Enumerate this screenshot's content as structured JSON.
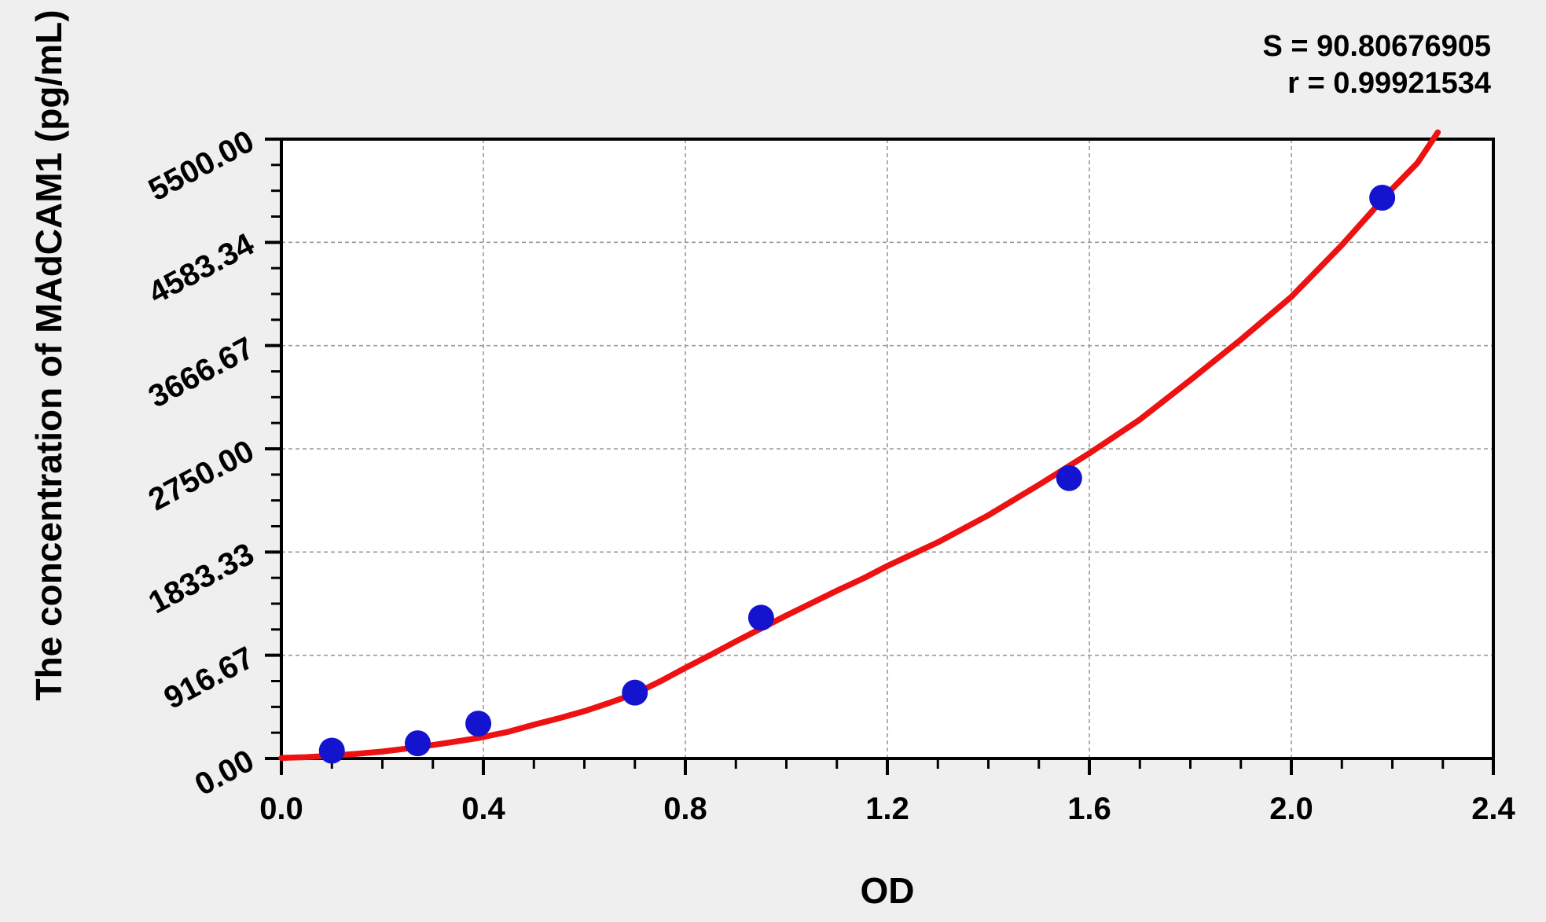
{
  "chart_data": {
    "type": "scatter",
    "title": "",
    "xlabel": "OD",
    "ylabel": "The concentration of MAdCAM1 (pg/mL)",
    "xlim": [
      0.0,
      2.4
    ],
    "ylim": [
      0.0,
      5500.0
    ],
    "x_ticks": {
      "values": [
        0.0,
        0.4,
        0.8,
        1.2,
        1.6,
        2.0,
        2.4
      ],
      "labels": [
        "0.0",
        "0.4",
        "0.8",
        "1.2",
        "1.6",
        "2.0",
        "2.4"
      ],
      "minor_step": 0.1
    },
    "y_ticks": {
      "values": [
        0.0,
        916.67,
        1833.33,
        2750.0,
        3666.67,
        4583.34,
        5500.0
      ],
      "labels": [
        "0.00",
        "916.67",
        "1833.33",
        "2750.00",
        "3666.67",
        "4583.34",
        "5500.00"
      ],
      "minor_step": 229.1667
    },
    "grid": {
      "visible": true,
      "style": "dashed",
      "on": "major"
    },
    "annotations": [
      {
        "text": "S = 90.80676905"
      },
      {
        "text": "r = 0.99921534"
      }
    ],
    "stats": {
      "S": "90.80676905",
      "r": "0.99921534"
    },
    "series": [
      {
        "name": "standard-points",
        "kind": "scatter",
        "color": "#1414cf",
        "marker_radius": 16.5,
        "points": [
          [
            0.1,
            70
          ],
          [
            0.27,
            135
          ],
          [
            0.39,
            310
          ],
          [
            0.7,
            585
          ],
          [
            0.95,
            1250
          ],
          [
            1.56,
            2490
          ],
          [
            2.18,
            4980
          ]
        ]
      },
      {
        "name": "fitted-curve",
        "kind": "line",
        "color": "#ed1111",
        "line_width": 7.5,
        "points": [
          [
            0.0,
            5
          ],
          [
            0.05,
            12
          ],
          [
            0.1,
            25
          ],
          [
            0.15,
            42
          ],
          [
            0.2,
            62
          ],
          [
            0.27,
            100
          ],
          [
            0.33,
            140
          ],
          [
            0.39,
            182
          ],
          [
            0.45,
            238
          ],
          [
            0.5,
            300
          ],
          [
            0.55,
            358
          ],
          [
            0.6,
            420
          ],
          [
            0.65,
            495
          ],
          [
            0.7,
            575
          ],
          [
            0.75,
            685
          ],
          [
            0.8,
            805
          ],
          [
            0.85,
            920
          ],
          [
            0.9,
            1040
          ],
          [
            0.95,
            1155
          ],
          [
            1.0,
            1270
          ],
          [
            1.1,
            1490
          ],
          [
            1.155,
            1605
          ],
          [
            1.2,
            1710
          ],
          [
            1.3,
            1920
          ],
          [
            1.4,
            2160
          ],
          [
            1.5,
            2430
          ],
          [
            1.6,
            2710
          ],
          [
            1.7,
            3010
          ],
          [
            1.8,
            3360
          ],
          [
            1.9,
            3720
          ],
          [
            2.0,
            4100
          ],
          [
            2.1,
            4560
          ],
          [
            2.2,
            5060
          ],
          [
            2.25,
            5290
          ],
          [
            2.29,
            5560
          ]
        ]
      }
    ],
    "colors": {
      "background": "#efefef",
      "plot_background": "#ffffff",
      "frame": "#000000",
      "grid": "#9a9a9a",
      "text": "#000000",
      "point": "#1414cf",
      "curve": "#ed1111"
    }
  }
}
